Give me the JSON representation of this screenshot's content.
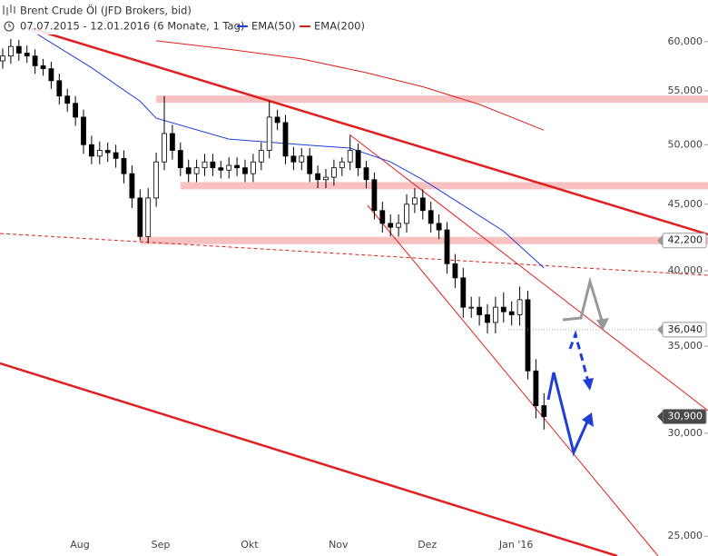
{
  "chart_data": {
    "type": "candlestick",
    "title": "Brent Crude Öl (JFD Brokers, bid)",
    "subtitle": "07.07.2015 - 12.01.2016 (6 Monate, 1 Tag)",
    "categories": [
      null,
      null,
      null,
      null,
      null,
      null,
      null,
      null,
      null,
      null,
      "Aug",
      null,
      null,
      null,
      null,
      null,
      null,
      null,
      null,
      null,
      "Sep",
      null,
      null,
      null,
      null,
      null,
      null,
      null,
      null,
      null,
      null,
      "Okt",
      null,
      null,
      null,
      null,
      null,
      null,
      null,
      null,
      null,
      null,
      "Nov",
      null,
      null,
      null,
      null,
      null,
      null,
      null,
      null,
      null,
      null,
      "Dez",
      null,
      null,
      null,
      null,
      null,
      null,
      null,
      null,
      null,
      null,
      "Jan '16",
      null,
      null,
      null
    ],
    "open": [
      58.0,
      58.5,
      59.5,
      58.8,
      58.5,
      57.5,
      57.2,
      56.0,
      54.5,
      53.8,
      52.5,
      50.0,
      49.0,
      49.5,
      49.3,
      48.8,
      47.5,
      45.5,
      42.5,
      45.5,
      48.5,
      51.0,
      49.5,
      48.0,
      47.5,
      48.0,
      48.5,
      48.0,
      47.8,
      48.2,
      48.0,
      47.5,
      48.5,
      49.5,
      52.5,
      52.0,
      49.0,
      48.5,
      49.0,
      47.5,
      47.0,
      47.2,
      48.0,
      48.5,
      49.5,
      48.0,
      47.0,
      44.5,
      43.5,
      43.2,
      43.5,
      45.0,
      45.5,
      44.5,
      43.5,
      43.0,
      40.5,
      39.5,
      37.5,
      37.5,
      37.0,
      36.5,
      37.5,
      37.2,
      37.0,
      38.0,
      33.5,
      31.5
    ],
    "high": [
      59.3,
      60.3,
      60.2,
      59.6,
      59.2,
      58.2,
      57.9,
      56.7,
      55.2,
      54.5,
      53.2,
      50.8,
      50.3,
      50.2,
      50.0,
      49.5,
      48.2,
      46.2,
      46.3,
      49.3,
      54.5,
      51.8,
      50.2,
      48.7,
      48.7,
      49.2,
      49.2,
      48.6,
      48.9,
      48.9,
      48.7,
      49.2,
      50.2,
      54.0,
      53.2,
      52.7,
      49.8,
      49.7,
      49.7,
      48.2,
      47.9,
      48.7,
      48.9,
      50.8,
      50.1,
      48.6,
      47.6,
      45.2,
      44.2,
      44.2,
      45.8,
      46.3,
      46.2,
      45.2,
      44.2,
      43.6,
      41.2,
      40.2,
      38.2,
      38.2,
      37.7,
      38.2,
      38.5,
      37.9,
      38.9,
      38.6,
      34.2,
      32.2
    ],
    "low": [
      57.2,
      57.7,
      58.0,
      57.8,
      56.7,
      56.5,
      55.2,
      53.7,
      53.0,
      51.7,
      49.2,
      48.3,
      48.3,
      48.5,
      48.0,
      46.7,
      44.7,
      42.2,
      42.0,
      44.8,
      47.8,
      48.7,
      47.3,
      46.8,
      46.8,
      47.3,
      47.3,
      47.1,
      47.1,
      47.3,
      46.8,
      46.8,
      47.8,
      48.8,
      51.3,
      48.3,
      47.8,
      47.8,
      46.8,
      46.3,
      46.3,
      46.5,
      47.3,
      47.8,
      47.3,
      46.3,
      43.8,
      42.8,
      42.5,
      42.5,
      42.8,
      44.3,
      43.8,
      42.8,
      42.3,
      39.8,
      38.8,
      36.8,
      36.8,
      36.3,
      35.8,
      35.8,
      36.5,
      36.3,
      36.3,
      33.0,
      30.8,
      30.2
    ],
    "close": [
      58.5,
      59.5,
      58.8,
      58.5,
      57.5,
      57.2,
      56.0,
      54.5,
      53.8,
      52.5,
      50.0,
      49.0,
      49.5,
      49.3,
      48.8,
      47.5,
      45.5,
      42.5,
      45.5,
      48.5,
      51.0,
      49.5,
      48.0,
      47.5,
      48.0,
      48.5,
      48.0,
      47.8,
      48.2,
      48.0,
      47.5,
      48.5,
      49.5,
      52.5,
      52.0,
      49.0,
      48.5,
      49.0,
      47.5,
      47.0,
      47.2,
      48.0,
      48.5,
      49.5,
      48.0,
      47.0,
      44.5,
      43.5,
      43.2,
      43.5,
      45.0,
      45.5,
      44.5,
      43.5,
      43.0,
      40.5,
      39.5,
      37.5,
      37.5,
      37.0,
      36.5,
      37.5,
      37.2,
      37.0,
      38.0,
      33.5,
      31.5,
      30.9
    ],
    "up_color": "#ffffff",
    "down_color": "#000000",
    "series": [
      {
        "name": "EMA(50)",
        "color": "#1e3fd6",
        "x": [
          3,
          11,
          17,
          19,
          28,
          37,
          43,
          48,
          52,
          58,
          62,
          67
        ],
        "values": [
          61.5,
          57.3,
          54.0,
          52.4,
          50.5,
          50.0,
          49.7,
          48.5,
          47.0,
          44.5,
          42.9,
          40.2
        ]
      },
      {
        "name": "EMA(200)",
        "color": "#e02020",
        "x": [
          19,
          28,
          37,
          45,
          52,
          59,
          67
        ],
        "values": [
          60.1,
          59.2,
          58.2,
          56.8,
          55.4,
          53.7,
          51.3
        ]
      }
    ],
    "zones": [
      {
        "value": 54.2,
        "from": 19
      },
      {
        "value": 46.5,
        "from": 22
      },
      {
        "value": 42.2,
        "from": 17
      }
    ],
    "price_markers": [
      {
        "value": 42.2,
        "label": "42,200",
        "fill": "#ffffff",
        "text_color": "#222222"
      },
      {
        "value": 36.04,
        "label": "36,040",
        "fill": "#ffffff",
        "text_color": "#222222"
      },
      {
        "value": 30.9,
        "label": "30,900",
        "fill": "#4a4a4a",
        "text_color": "#ffffff"
      }
    ],
    "log_scale": true,
    "ylim": [
      24.14,
      64.6
    ],
    "yticks": [
      {
        "value": 25,
        "label": "25,000"
      },
      {
        "value": 30,
        "label": "30,000"
      },
      {
        "value": 35,
        "label": "35,000"
      },
      {
        "value": 40,
        "label": "40,000"
      },
      {
        "value": 45,
        "label": "45,000"
      },
      {
        "value": 50,
        "label": "50,000"
      },
      {
        "value": 55,
        "label": "55,000"
      },
      {
        "value": 60,
        "label": "60,000"
      }
    ]
  }
}
